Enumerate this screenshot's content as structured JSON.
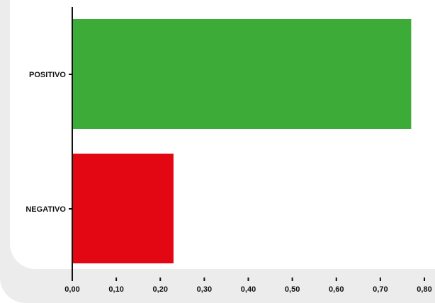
{
  "chart_data": {
    "type": "bar",
    "orientation": "horizontal",
    "categories": [
      "POSITIVO",
      "NEGATIVO"
    ],
    "values": [
      0.77,
      0.23
    ],
    "colors": [
      "#3cab38",
      "#e30613"
    ],
    "x_ticks": [
      "0,00",
      "0,10",
      "0,20",
      "0,30",
      "0,40",
      "0,50",
      "0,60",
      "0,70",
      "0,80"
    ],
    "xlim": [
      0,
      0.8
    ],
    "grid": false,
    "legend": "none",
    "title": "",
    "xlabel": "",
    "ylabel": ""
  },
  "colors": {
    "panel_background": "#ececec",
    "plot_background": "#ffffff",
    "axis": "#111111"
  }
}
